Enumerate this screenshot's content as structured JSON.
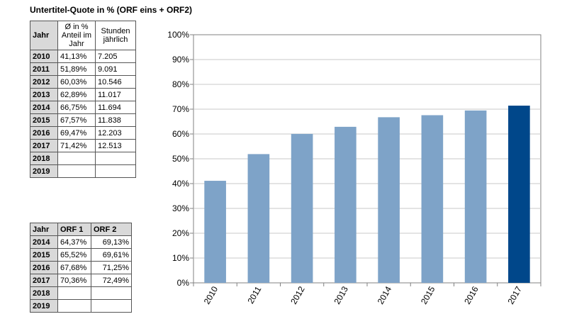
{
  "chart_data": {
    "type": "bar",
    "title": "Untertitel-Quote in % (ORF eins + ORF2)",
    "categories": [
      "2010",
      "2011",
      "2012",
      "2013",
      "2014",
      "2015",
      "2016",
      "2017"
    ],
    "values": [
      41.13,
      51.89,
      60.03,
      62.89,
      66.75,
      67.57,
      69.47,
      71.42
    ],
    "ylim": [
      0,
      100
    ],
    "y_ticks": [
      "0%",
      "10%",
      "20%",
      "30%",
      "40%",
      "50%",
      "60%",
      "70%",
      "80%",
      "90%",
      "100%"
    ],
    "grid": true,
    "colors": {
      "bar": "#7ea3c8",
      "highlight": "#00478a",
      "grid": "#c8c8c8",
      "axis": "#808080"
    },
    "highlight_index": 7
  },
  "table1": {
    "headers": [
      "Jahr",
      "Ø in % Anteil im Jahr",
      "Stunden jährlich"
    ],
    "rows": [
      [
        "2010",
        "41,13%",
        "7.205"
      ],
      [
        "2011",
        "51,89%",
        "9.091"
      ],
      [
        "2012",
        "60,03%",
        "10.546"
      ],
      [
        "2013",
        "62,89%",
        "11.017"
      ],
      [
        "2014",
        "66,75%",
        "11.694"
      ],
      [
        "2015",
        "67,57%",
        "11.838"
      ],
      [
        "2016",
        "69,47%",
        "12.203"
      ],
      [
        "2017",
        "71,42%",
        "12.513"
      ],
      [
        "2018",
        "",
        ""
      ],
      [
        "2019",
        "",
        ""
      ]
    ]
  },
  "table2": {
    "headers": [
      "Jahr",
      "ORF 1",
      "ORF 2"
    ],
    "rows": [
      [
        "2014",
        "64,37%",
        "69,13%"
      ],
      [
        "2015",
        "65,52%",
        "69,61%"
      ],
      [
        "2016",
        "67,68%",
        "71,25%"
      ],
      [
        "2017",
        "70,36%",
        "72,49%"
      ],
      [
        "2018",
        "",
        ""
      ],
      [
        "2019",
        "",
        ""
      ]
    ]
  }
}
